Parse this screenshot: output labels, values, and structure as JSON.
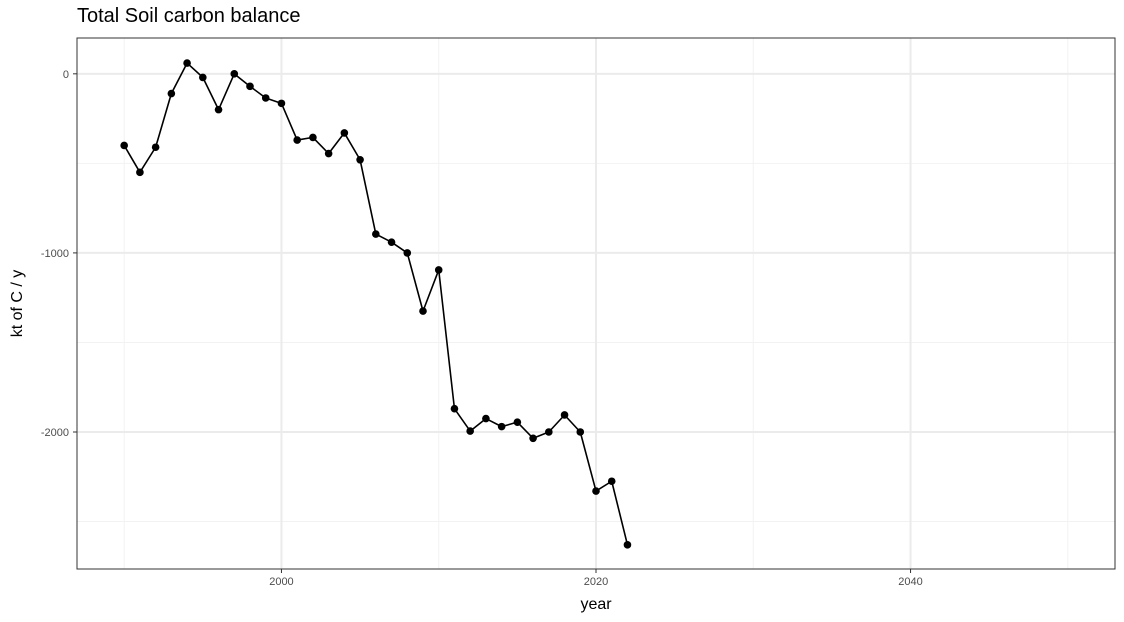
{
  "chart_data": {
    "type": "line",
    "title": "Total Soil carbon balance",
    "xlabel": "year",
    "ylabel": "kt of C / y",
    "xlim": [
      1987,
      2053
    ],
    "ylim": [
      -2765,
      200
    ],
    "x_ticks": [
      2000,
      2020,
      2040
    ],
    "x_minor_ticks": [
      1990,
      2010,
      2030,
      2050
    ],
    "y_ticks": [
      0,
      -1000,
      -2000
    ],
    "y_minor_ticks": [
      -500,
      -1500,
      -2500
    ],
    "grid": true,
    "legend": "none",
    "series": [
      {
        "color": "#000000",
        "x": [
          1990,
          1991,
          1992,
          1993,
          1994,
          1995,
          1996,
          1997,
          1998,
          1999,
          2000,
          2001,
          2002,
          2003,
          2004,
          2005,
          2006,
          2007,
          2008,
          2009,
          2010,
          2011,
          2012,
          2013,
          2014,
          2015,
          2016,
          2017,
          2018,
          2019,
          2020,
          2021,
          2022
        ],
        "y": [
          -400,
          -550,
          -410,
          -110,
          60,
          -20,
          -200,
          0,
          -70,
          -135,
          -165,
          -370,
          -355,
          -445,
          -330,
          -480,
          -895,
          -940,
          -1000,
          -1325,
          -1095,
          -1870,
          -1995,
          -1925,
          -1970,
          -1945,
          -2035,
          -2000,
          -1905,
          -2000,
          -2330,
          -2275,
          -2630
        ]
      }
    ]
  }
}
